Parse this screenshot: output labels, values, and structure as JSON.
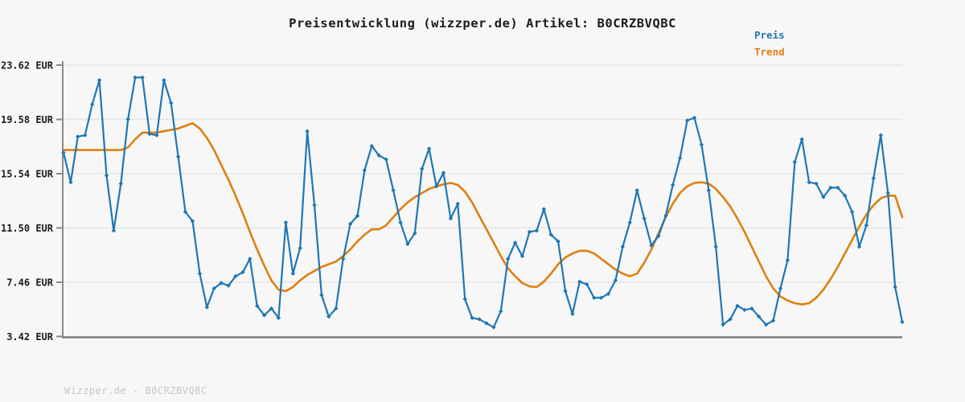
{
  "header": {
    "title": "Preisentwicklung (wizzper.de) Artikel: B0CRZBVQBC"
  },
  "legend": {
    "position": "top-right",
    "items": [
      {
        "label": "Preis",
        "color": "#1f77b4"
      },
      {
        "label": "Trend",
        "color": "#de800f"
      }
    ]
  },
  "footer": {
    "watermark": "Wizzper.de - B0CRZBVQBC"
  },
  "colors": {
    "background": "#f7f7f7",
    "gridline": "#e6e6e6",
    "axis": "#8a8a8a",
    "bottom_axis": "#7f7f7f",
    "preis": "#1f77b4",
    "trend": "#de800f",
    "title_text": "#1c1c1c",
    "watermark_text": "#c6c6c6"
  },
  "chart_data": {
    "type": "line",
    "title": "Preisentwicklung (wizzper.de) Artikel: B0CRZBVQBC",
    "xlabel": "",
    "ylabel": "EUR",
    "ylim": [
      3.42,
      23.62
    ],
    "grid": true,
    "legend_position": "top-right",
    "x_tick_labels": [],
    "y_ticks": [
      {
        "value": 23.62,
        "label": "23.62 EUR"
      },
      {
        "value": 19.58,
        "label": "19.58 EUR"
      },
      {
        "value": 15.54,
        "label": "15.54 EUR"
      },
      {
        "value": 11.5,
        "label": "11.50 EUR"
      },
      {
        "value": 7.46,
        "label": "7.46 EUR"
      },
      {
        "value": 3.42,
        "label": "3.42 EUR"
      }
    ],
    "series": [
      {
        "name": "Preis",
        "color": "#1f77b4",
        "marker": "diamond",
        "values": [
          17.1,
          14.9,
          18.3,
          18.4,
          20.7,
          22.5,
          15.4,
          11.3,
          14.8,
          19.6,
          22.7,
          22.7,
          18.5,
          18.4,
          22.5,
          20.8,
          16.8,
          12.7,
          12.0,
          8.1,
          5.6,
          7.0,
          7.4,
          7.2,
          7.9,
          8.2,
          9.2,
          5.7,
          5.0,
          5.5,
          4.8,
          11.9,
          8.1,
          10.0,
          18.7,
          13.2,
          6.5,
          4.9,
          5.5,
          9.2,
          11.8,
          12.4,
          15.8,
          17.6,
          16.9,
          16.6,
          14.3,
          11.9,
          10.3,
          11.1,
          15.9,
          17.4,
          14.6,
          15.6,
          12.2,
          13.3,
          6.2,
          4.8,
          4.7,
          4.4,
          4.1,
          5.3,
          9.2,
          10.4,
          9.4,
          11.2,
          11.3,
          12.9,
          11.0,
          10.5,
          6.8,
          5.1,
          7.5,
          7.3,
          6.3,
          6.3,
          6.6,
          7.6,
          10.1,
          11.9,
          14.3,
          12.2,
          10.2,
          10.9,
          12.4,
          14.7,
          16.7,
          19.5,
          19.7,
          17.7,
          14.3,
          10.1,
          4.3,
          4.7,
          5.7,
          5.4,
          5.5,
          4.9,
          4.3,
          4.6,
          7.0,
          9.1,
          16.4,
          18.1,
          14.9,
          14.8,
          13.8,
          14.5,
          14.5,
          13.9,
          12.7,
          10.1,
          11.7,
          15.2,
          18.4,
          14.1,
          7.1,
          4.5
        ]
      },
      {
        "name": "Trend",
        "color": "#de800f",
        "marker": "none",
        "values": [
          17.3,
          17.3,
          17.3,
          17.3,
          17.3,
          17.3,
          17.3,
          17.3,
          17.3,
          17.5,
          18.1,
          18.6,
          18.6,
          18.6,
          18.7,
          18.8,
          18.9,
          19.1,
          19.3,
          18.9,
          18.2,
          17.3,
          16.2,
          15.1,
          13.9,
          12.6,
          11.2,
          9.9,
          8.7,
          7.6,
          6.9,
          6.8,
          7.1,
          7.6,
          8.0,
          8.3,
          8.6,
          8.8,
          9.0,
          9.4,
          9.9,
          10.5,
          11.0,
          11.4,
          11.4,
          11.7,
          12.3,
          12.9,
          13.4,
          13.8,
          14.1,
          14.4,
          14.6,
          14.75,
          14.85,
          14.7,
          14.2,
          13.4,
          12.4,
          11.4,
          10.4,
          9.4,
          8.5,
          7.9,
          7.4,
          7.15,
          7.1,
          7.5,
          8.1,
          8.8,
          9.3,
          9.6,
          9.8,
          9.8,
          9.6,
          9.2,
          8.8,
          8.4,
          8.1,
          7.9,
          8.1,
          8.9,
          9.9,
          11.1,
          12.3,
          13.3,
          14.1,
          14.6,
          14.85,
          14.9,
          14.8,
          14.4,
          13.8,
          13.1,
          12.2,
          11.2,
          10.1,
          9.0,
          7.9,
          7.0,
          6.4,
          6.1,
          5.9,
          5.8,
          5.9,
          6.3,
          6.9,
          7.7,
          8.6,
          9.6,
          10.6,
          11.6,
          12.5,
          13.2,
          13.7,
          13.9,
          13.9,
          12.3
        ]
      }
    ]
  }
}
